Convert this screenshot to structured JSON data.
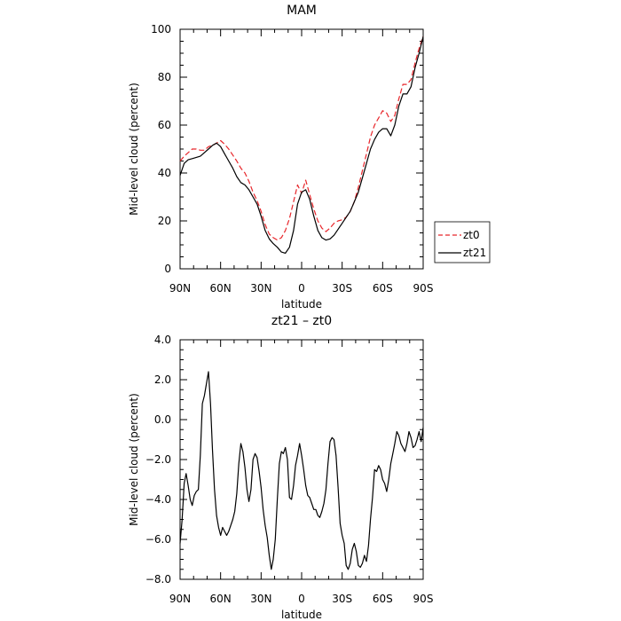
{
  "chart_data": [
    {
      "type": "line",
      "title": "MAM",
      "xlabel": "latitude",
      "ylabel": "Mid-level cloud (percent)",
      "xlim": [
        90,
        -90
      ],
      "ylim": [
        0,
        100
      ],
      "x_ticks": [
        90,
        60,
        30,
        0,
        -30,
        -60,
        -90
      ],
      "x_tick_labels": [
        "90N",
        "60N",
        "30N",
        "0",
        "30S",
        "60S",
        "90S"
      ],
      "y_ticks": [
        0,
        20,
        40,
        60,
        80,
        100
      ],
      "y_tick_labels": [
        "0",
        "20",
        "40",
        "60",
        "80",
        "100"
      ],
      "legend_position": "outside-right",
      "series": [
        {
          "name": "zt0",
          "color": "#e8262b",
          "style": "dashed",
          "x": [
            90,
            87,
            84,
            81,
            78,
            75,
            72,
            69,
            66,
            63,
            60,
            57,
            54,
            51,
            48,
            45,
            42,
            39,
            36,
            33,
            30,
            27,
            24,
            21,
            18,
            15,
            12,
            9,
            6,
            3,
            0,
            -3,
            -6,
            -9,
            -12,
            -15,
            -18,
            -21,
            -24,
            -27,
            -30,
            -33,
            -36,
            -39,
            -42,
            -45,
            -48,
            -51,
            -54,
            -57,
            -60,
            -63,
            -66,
            -69,
            -72,
            -75,
            -78,
            -81,
            -84,
            -87,
            -90
          ],
          "y": [
            45,
            47,
            48.5,
            50,
            50,
            49.5,
            49.5,
            51,
            51.5,
            52.5,
            53.5,
            52,
            50,
            47.5,
            45,
            42,
            40,
            36.5,
            32,
            28.5,
            24,
            18.5,
            14.5,
            13,
            12,
            13,
            16,
            21,
            28,
            35,
            31.5,
            37,
            31,
            25,
            20,
            17,
            15.5,
            17,
            19,
            20,
            20.5,
            21.5,
            24,
            28,
            34,
            41,
            48,
            55,
            60,
            63,
            66,
            65,
            61.5,
            64,
            71,
            77,
            77,
            79,
            86,
            92,
            97
          ]
        },
        {
          "name": "zt21",
          "color": "#000000",
          "style": "solid",
          "x": [
            90,
            87,
            84,
            81,
            78,
            75,
            72,
            69,
            66,
            63,
            60,
            57,
            54,
            51,
            48,
            45,
            42,
            39,
            36,
            33,
            30,
            27,
            24,
            21,
            18,
            15,
            12,
            9,
            6,
            3,
            0,
            -3,
            -6,
            -9,
            -12,
            -15,
            -18,
            -21,
            -24,
            -27,
            -30,
            -33,
            -36,
            -39,
            -42,
            -45,
            -48,
            -51,
            -54,
            -57,
            -60,
            -63,
            -66,
            -69,
            -72,
            -75,
            -78,
            -81,
            -84,
            -87,
            -90
          ],
          "y": [
            39,
            44,
            45.5,
            46,
            46.5,
            47,
            48.5,
            50,
            51.5,
            52.5,
            51,
            48,
            45,
            42,
            38.5,
            36,
            35,
            33,
            30,
            27,
            22,
            16,
            12.5,
            10.5,
            9,
            7,
            6.5,
            9,
            16,
            27,
            32,
            33,
            29,
            22,
            16,
            13,
            12,
            12.5,
            14,
            16.5,
            19,
            21.5,
            24,
            28,
            32,
            38,
            44,
            50,
            54,
            57,
            58.5,
            58.5,
            55.5,
            60,
            68,
            73,
            73,
            76,
            84,
            90,
            97
          ]
        }
      ]
    },
    {
      "type": "line",
      "title": "zt21 – zt0",
      "xlabel": "latitude",
      "ylabel": "Mid-level cloud (percent)",
      "xlim": [
        90,
        -90
      ],
      "ylim": [
        -8,
        4
      ],
      "x_ticks": [
        90,
        60,
        30,
        0,
        -30,
        -60,
        -90
      ],
      "x_tick_labels": [
        "90N",
        "60N",
        "30N",
        "0",
        "30S",
        "60S",
        "90S"
      ],
      "y_ticks": [
        -8,
        -6,
        -4,
        -2,
        0,
        2,
        4
      ],
      "y_tick_labels": [
        "−8.0",
        "−6.0",
        "−4.0",
        "−2.0",
        "0.0",
        "2.0",
        "4.0"
      ],
      "series": [
        {
          "color": "#000000",
          "style": "solid",
          "x": [
            90,
            88.5,
            87,
            85.5,
            84,
            82.5,
            81,
            79.5,
            78,
            76.5,
            75,
            73.5,
            72,
            70.5,
            69,
            67.5,
            66,
            64.5,
            63,
            61.5,
            60,
            58.5,
            57,
            55.5,
            54,
            52.5,
            51,
            49.5,
            48,
            46.5,
            45,
            43.5,
            42,
            40.5,
            39,
            37.5,
            36,
            34.5,
            33,
            31.5,
            30,
            28.5,
            27,
            25.5,
            24,
            22.5,
            21,
            19.5,
            18,
            16.5,
            15,
            13.5,
            12,
            10.5,
            9,
            7.5,
            6,
            4.5,
            3,
            1.5,
            0,
            -1.5,
            -3,
            -4.5,
            -6,
            -7.5,
            -9,
            -10.5,
            -12,
            -13.5,
            -15,
            -16.5,
            -18,
            -19.5,
            -21,
            -22.5,
            -24,
            -25.5,
            -27,
            -28.5,
            -30,
            -31.5,
            -33,
            -34.5,
            -36,
            -37.5,
            -39,
            -40.5,
            -42,
            -43.5,
            -45,
            -46.5,
            -48,
            -49.5,
            -51,
            -52.5,
            -54,
            -55.5,
            -57,
            -58.5,
            -60,
            -61.5,
            -63,
            -64.5,
            -66,
            -67.5,
            -69,
            -70.5,
            -72,
            -73.5,
            -75,
            -76.5,
            -78,
            -79.5,
            -81,
            -82.5,
            -84,
            -85.5,
            -87,
            -88.5,
            -90
          ],
          "y": [
            -6.2,
            -5,
            -3.2,
            -2.7,
            -3.3,
            -4,
            -4.3,
            -3.8,
            -3.6,
            -3.5,
            -1.8,
            0.8,
            1.2,
            1.8,
            2.4,
            0.8,
            -1.5,
            -3.5,
            -4.8,
            -5.4,
            -5.8,
            -5.4,
            -5.6,
            -5.8,
            -5.6,
            -5.3,
            -5,
            -4.6,
            -3.7,
            -2.2,
            -1.2,
            -1.6,
            -2.4,
            -3.5,
            -4.1,
            -3.5,
            -2,
            -1.7,
            -1.9,
            -2.6,
            -3.4,
            -4.5,
            -5.3,
            -5.9,
            -6.8,
            -7.5,
            -7,
            -6,
            -4,
            -2.2,
            -1.6,
            -1.7,
            -1.4,
            -2,
            -3.9,
            -4,
            -3.3,
            -2.3,
            -1.8,
            -1.2,
            -1.8,
            -2.5,
            -3.3,
            -3.8,
            -3.9,
            -4.2,
            -4.5,
            -4.5,
            -4.8,
            -4.9,
            -4.6,
            -4.2,
            -3.5,
            -2.2,
            -1.1,
            -0.9,
            -1,
            -1.8,
            -3.4,
            -5.2,
            -5.8,
            -6.2,
            -7.3,
            -7.5,
            -7.2,
            -6.5,
            -6.2,
            -6.6,
            -7.3,
            -7.4,
            -7.2,
            -6.8,
            -7.1,
            -6.3,
            -5,
            -3.9,
            -2.5,
            -2.6,
            -2.3,
            -2.5,
            -3,
            -3.2,
            -3.6,
            -3,
            -2.2,
            -1.7,
            -1.2,
            -0.6,
            -0.8,
            -1.2,
            -1.4,
            -1.6,
            -1.2,
            -0.6,
            -0.9,
            -1.4,
            -1.3,
            -1,
            -0.6,
            -1.1,
            -0.4
          ]
        }
      ]
    }
  ]
}
